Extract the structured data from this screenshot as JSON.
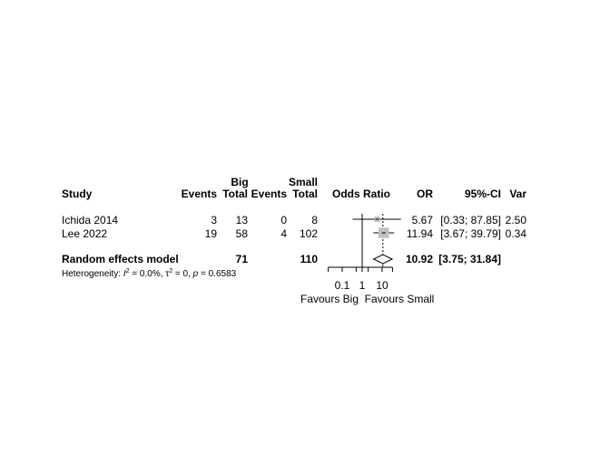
{
  "chart_data": {
    "type": "forest",
    "columns": {
      "study": "Study",
      "group1": "Big",
      "group2": "Small",
      "events": "Events",
      "total": "Total",
      "effect": "Odds Ratio",
      "or": "OR",
      "ci": "95%-CI",
      "var": "Var"
    },
    "studies": [
      {
        "name": "Ichida 2014",
        "e1": "3",
        "n1": "13",
        "e2": "0",
        "n2": "8",
        "or": 5.67,
        "lower": 0.33,
        "upper": 87.85,
        "or_text": "5.67",
        "ci_text": "[0.33; 87.85]",
        "var_text": "2.50",
        "weight": 0.12
      },
      {
        "name": "Lee 2022",
        "e1": "19",
        "n1": "58",
        "e2": "4",
        "n2": "102",
        "or": 11.94,
        "lower": 3.67,
        "upper": 39.79,
        "or_text": "11.94",
        "ci_text": "[3.67; 39.79]",
        "var_text": "0.34",
        "weight": 0.88
      }
    ],
    "pooled": {
      "name": "Random effects model",
      "n1": "71",
      "n2": "110",
      "or": 10.92,
      "lower": 3.75,
      "upper": 31.84,
      "or_text": "10.92",
      "ci_text": "[3.75; 31.84]"
    },
    "heterogeneity": {
      "lead": "Heterogeneity: ",
      "i2": "I",
      "i2_sup": "2",
      "i2_val": " = 0.0%, ",
      "tau": "τ",
      "tau_sup": "2",
      "tau_val": " = 0, ",
      "p": "p",
      "p_val": " = 0.6583"
    },
    "x_axis": {
      "scale": "log",
      "ticks": [
        0.1,
        1,
        10
      ],
      "tick_labels": [
        "0.1",
        "1",
        "10"
      ],
      "minor_ticks": [
        0.02,
        0.5,
        2
      ],
      "range": [
        0.02,
        90
      ]
    },
    "labels": {
      "left": "Favours Big",
      "right": "Favours Small"
    },
    "colors": {
      "square": "#c0c0c0",
      "line": "#000000"
    }
  }
}
